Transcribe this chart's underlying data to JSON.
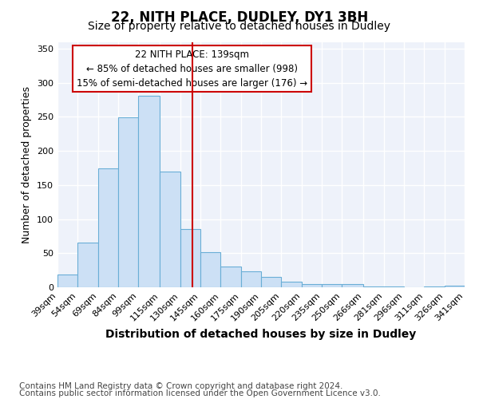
{
  "title": "22, NITH PLACE, DUDLEY, DY1 3BH",
  "subtitle": "Size of property relative to detached houses in Dudley",
  "xlabel": "Distribution of detached houses by size in Dudley",
  "ylabel": "Number of detached properties",
  "footer_line1": "Contains HM Land Registry data © Crown copyright and database right 2024.",
  "footer_line2": "Contains public sector information licensed under the Open Government Licence v3.0.",
  "annotation_line1": "22 NITH PLACE: 139sqm",
  "annotation_line2": "← 85% of detached houses are smaller (998)",
  "annotation_line3": "15% of semi-detached houses are larger (176) →",
  "property_size": 139,
  "bar_color": "#cce0f5",
  "bar_edge_color": "#6aaed6",
  "vline_color": "#cc0000",
  "annotation_box_color": "#cc0000",
  "background_color": "#eef2fa",
  "bin_edges": [
    39,
    54,
    69,
    84,
    99,
    115,
    130,
    145,
    160,
    175,
    190,
    205,
    220,
    235,
    250,
    266,
    281,
    296,
    311,
    326,
    341
  ],
  "bin_heights": [
    19,
    65,
    175,
    249,
    281,
    170,
    85,
    51,
    30,
    23,
    15,
    8,
    5,
    5,
    5,
    1,
    1,
    0,
    1,
    2
  ],
  "ylim": [
    0,
    360
  ],
  "yticks": [
    0,
    50,
    100,
    150,
    200,
    250,
    300,
    350
  ],
  "title_fontsize": 12,
  "subtitle_fontsize": 10,
  "xlabel_fontsize": 10,
  "ylabel_fontsize": 9,
  "tick_fontsize": 8,
  "annotation_fontsize": 8.5,
  "footer_fontsize": 7.5
}
